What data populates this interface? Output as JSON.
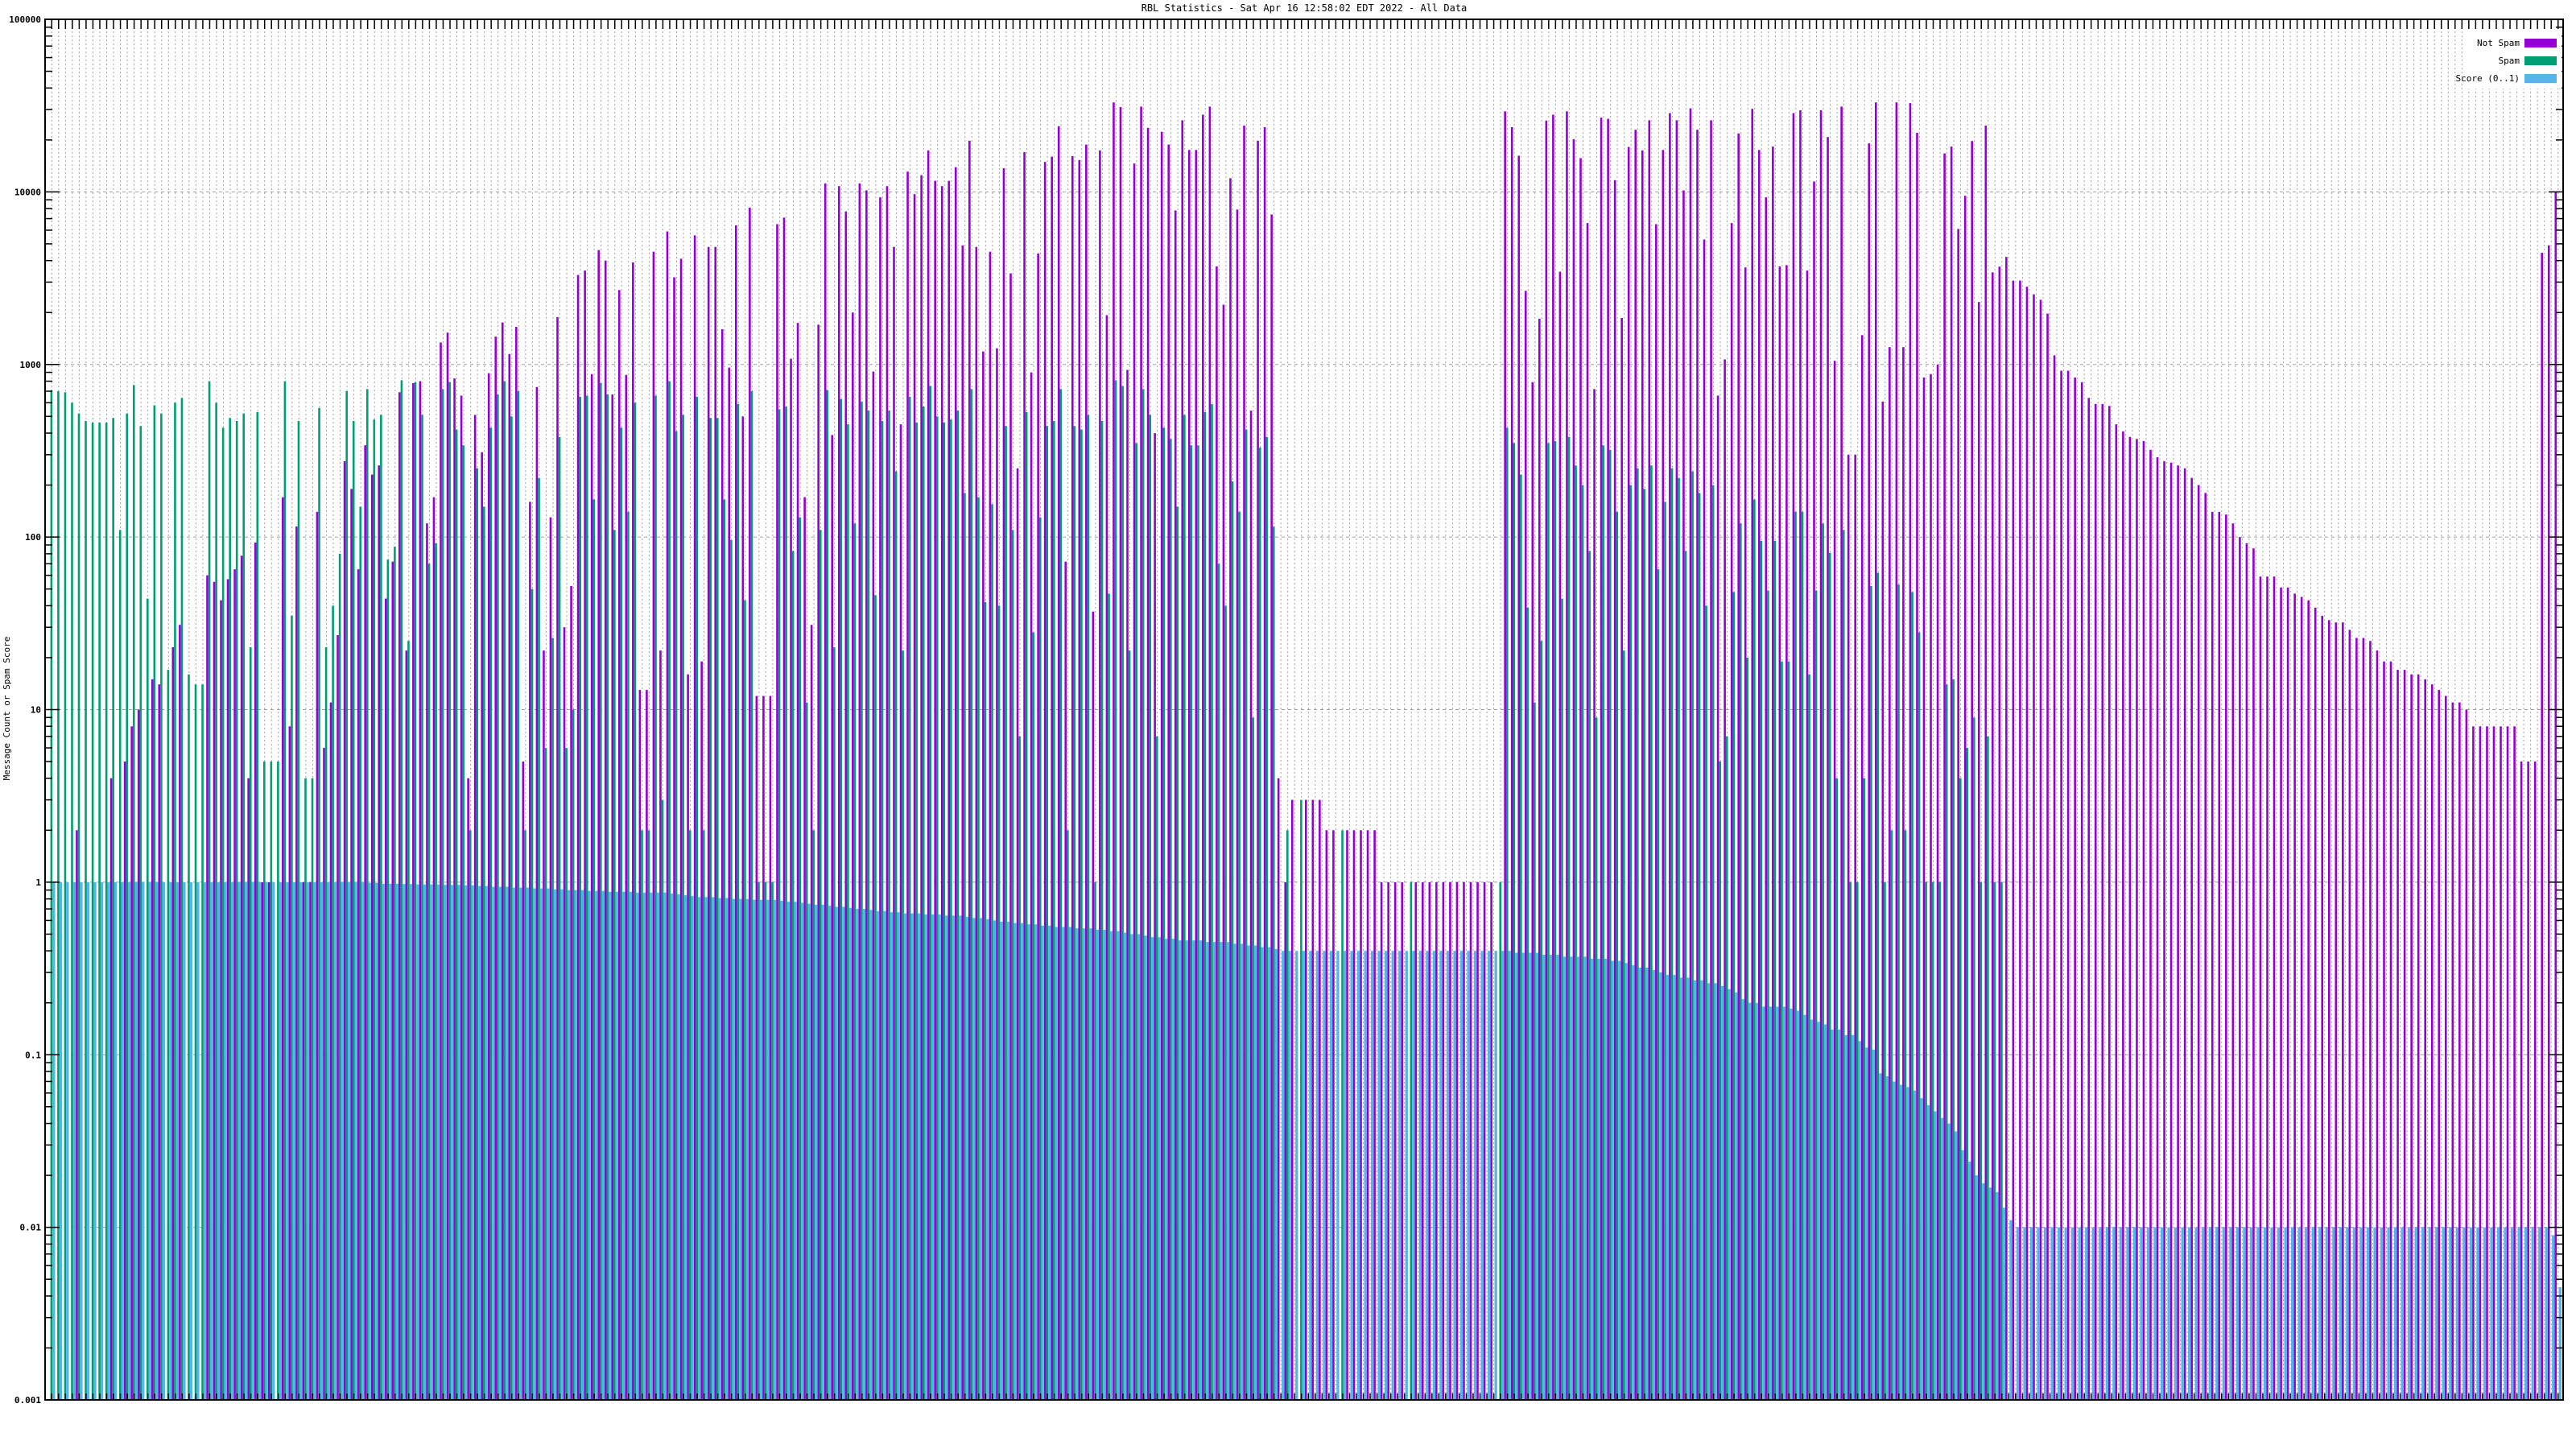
{
  "chart_data": {
    "type": "bar",
    "title": "RBL Statistics - Sat Apr 16 12:58:02 EDT 2022 - All Data",
    "xlabel": "",
    "ylabel": "Message Count or Spam Score",
    "yscale": "log",
    "ylim": [
      0.001,
      100000
    ],
    "yticks": [
      "100000",
      "10000",
      "1000",
      "100",
      "10",
      "1",
      "0.1",
      "0.01",
      "0.001"
    ],
    "ytick_values": [
      100000,
      10000,
      1000,
      100,
      10,
      1,
      0.1,
      0.01,
      0.001
    ],
    "grid": true,
    "legend_position": "top-right",
    "colors": {
      "not_spam": "#9400d3",
      "spam": "#009e73",
      "score": "#56b4e9"
    },
    "series": [
      {
        "key": "not_spam",
        "name": "Not Spam",
        "values": [
          0,
          0,
          0,
          0,
          2,
          0,
          0,
          0,
          0,
          4,
          0,
          5,
          8,
          10,
          0,
          15,
          14,
          0,
          23,
          31,
          0,
          0,
          0,
          60,
          55,
          43,
          57,
          65,
          78,
          4,
          93,
          1,
          1,
          0,
          170,
          8,
          115,
          1,
          1,
          140,
          6,
          11,
          27,
          275,
          190,
          65,
          340,
          230,
          260,
          44,
          72,
          690,
          22,
          780,
          800,
          120,
          170,
          1340,
          1530,
          830,
          660,
          4,
          510,
          310,
          890,
          1450,
          1750,
          1150,
          1650,
          5,
          160,
          740,
          22,
          130,
          1880,
          30,
          52,
          3300,
          3500,
          880,
          4600,
          4000,
          670,
          2700,
          870,
          3900,
          13,
          13,
          4500,
          22,
          5900,
          3200,
          4100,
          16,
          5600,
          19,
          4800,
          4800,
          1600,
          960,
          6400,
          500,
          8100,
          12,
          12,
          12,
          6500,
          7100,
          1080,
          1740,
          170,
          31,
          1700,
          11200,
          390,
          10800,
          7700,
          2000,
          11200,
          10200,
          910,
          9300,
          10800,
          4800,
          450,
          13100,
          9700,
          12500,
          17400,
          11600,
          10800,
          11600,
          13900,
          4900,
          19800,
          4800,
          1190,
          4500,
          1240,
          13700,
          3370,
          250,
          17000,
          900,
          4400,
          14900,
          16000,
          24000,
          72,
          16100,
          15300,
          18800,
          37,
          17400,
          1930,
          33000,
          31000,
          930,
          14600,
          31200,
          23500,
          400,
          22300,
          18800,
          7800,
          26000,
          17500,
          17500,
          28000,
          31200,
          3700,
          2220,
          12000,
          7900,
          24200,
          540,
          19800,
          23700,
          7400,
          4,
          1,
          3,
          0,
          3,
          3,
          3,
          2,
          2,
          0,
          2,
          2,
          2,
          2,
          2,
          1,
          1,
          1,
          1,
          0,
          1,
          1,
          1,
          1,
          1,
          1,
          1,
          1,
          1,
          1,
          1,
          1,
          0,
          29300,
          23700,
          16200,
          2670,
          790,
          1840,
          25900,
          28000,
          3450,
          29300,
          20200,
          15700,
          6600,
          720,
          26900,
          26500,
          11700,
          1860,
          18200,
          22900,
          17400,
          26000,
          6500,
          17500,
          28600,
          26000,
          10200,
          30500,
          22900,
          5300,
          26000,
          660,
          1070,
          6600,
          21800,
          3650,
          30300,
          17500,
          9300,
          18300,
          3700,
          3760,
          28600,
          29700,
          3500,
          11500,
          29700,
          20800,
          1050,
          31200,
          300,
          300,
          1480,
          19100,
          33000,
          610,
          1260,
          33000,
          1260,
          32700,
          22000,
          840,
          880,
          1000,
          16700,
          18300,
          6100,
          9500,
          19700,
          2300,
          24200,
          3420,
          3690,
          4200,
          3060,
          3060,
          2820,
          2550,
          2370,
          1970,
          1130,
          920,
          920,
          840,
          790,
          640,
          590,
          590,
          575,
          450,
          410,
          380,
          370,
          360,
          320,
          290,
          275,
          270,
          260,
          250,
          220,
          200,
          180,
          140,
          140,
          135,
          120,
          100,
          92,
          86,
          59,
          59,
          59,
          51,
          51,
          47,
          45,
          43,
          39,
          35,
          33,
          32,
          32,
          29,
          26,
          26,
          25,
          22,
          19,
          19,
          17,
          17,
          16,
          16,
          15,
          14,
          13,
          12,
          11,
          11,
          10,
          8,
          8,
          8,
          8,
          8,
          8,
          8,
          5,
          5,
          5,
          4440,
          4900,
          10000
        ]
      },
      {
        "key": "spam",
        "name": "Spam",
        "values": [
          710,
          700,
          690,
          600,
          520,
          470,
          460,
          460,
          460,
          490,
          110,
          520,
          760,
          440,
          44,
          580,
          520,
          17,
          600,
          640,
          16,
          14,
          14,
          800,
          600,
          430,
          490,
          470,
          520,
          23,
          530,
          5,
          5,
          5,
          800,
          35,
          470,
          4,
          4,
          560,
          23,
          40,
          80,
          700,
          470,
          150,
          720,
          480,
          510,
          74,
          88,
          810,
          25,
          790,
          510,
          70,
          92,
          720,
          790,
          420,
          340,
          2,
          250,
          150,
          430,
          670,
          800,
          500,
          700,
          2,
          50,
          220,
          6,
          26,
          380,
          6,
          10,
          650,
          660,
          165,
          780,
          670,
          110,
          430,
          140,
          600,
          2,
          2,
          660,
          3,
          800,
          410,
          510,
          2,
          650,
          2,
          490,
          490,
          165,
          96,
          590,
          43,
          700,
          1,
          1,
          1,
          550,
          570,
          83,
          130,
          11,
          2,
          110,
          710,
          23,
          630,
          450,
          120,
          610,
          540,
          46,
          470,
          540,
          240,
          22,
          650,
          460,
          570,
          750,
          500,
          460,
          480,
          540,
          180,
          720,
          170,
          42,
          155,
          40,
          440,
          110,
          7,
          530,
          28,
          130,
          440,
          470,
          720,
          2,
          440,
          420,
          510,
          1,
          470,
          47,
          810,
          750,
          22,
          350,
          720,
          510,
          7,
          430,
          370,
          150,
          510,
          340,
          340,
          530,
          590,
          70,
          40,
          210,
          140,
          420,
          9,
          330,
          380,
          115,
          0,
          2,
          0,
          3,
          0,
          0,
          0,
          0,
          0,
          2,
          0,
          0,
          0,
          0,
          0,
          0,
          0,
          0,
          0,
          1,
          0,
          0,
          0,
          0,
          0,
          0,
          0,
          0,
          0,
          0,
          0,
          0,
          1,
          430,
          350,
          230,
          39,
          11,
          25,
          350,
          360,
          44,
          380,
          260,
          200,
          83,
          9,
          340,
          320,
          140,
          22,
          200,
          250,
          190,
          260,
          65,
          160,
          250,
          220,
          83,
          240,
          180,
          40,
          200,
          5,
          7,
          48,
          120,
          20,
          165,
          95,
          49,
          95,
          19,
          19,
          140,
          140,
          16,
          49,
          120,
          81,
          4,
          110,
          1,
          1,
          4,
          52,
          62,
          1,
          2,
          53,
          2,
          48,
          28,
          1,
          1,
          1,
          14,
          15,
          4,
          6,
          9,
          1,
          7,
          1,
          1,
          0,
          0,
          0,
          0,
          0,
          0,
          0,
          0,
          0,
          0,
          0,
          0,
          0,
          0,
          0,
          0,
          0,
          0,
          0,
          0,
          0,
          0,
          0,
          0,
          0,
          0,
          0,
          0,
          0,
          0,
          0,
          0,
          0,
          0,
          0,
          0,
          0,
          0,
          0,
          0,
          0,
          0,
          0,
          0,
          0,
          0,
          0,
          0,
          0,
          0,
          0,
          0,
          0,
          0,
          0,
          0,
          0,
          0,
          0,
          0,
          0,
          0,
          0,
          0,
          0,
          0,
          0,
          0,
          0,
          0,
          0,
          0,
          0,
          0,
          0,
          0,
          0,
          0,
          0,
          0,
          0
        ]
      },
      {
        "key": "score",
        "name": "Score (0..1)",
        "values": [
          1,
          1,
          1,
          1,
          1,
          1,
          1,
          1,
          1,
          1,
          1,
          1,
          1,
          1,
          1,
          1,
          1,
          1,
          1,
          1,
          1,
          1,
          1,
          1,
          1,
          1,
          1,
          1,
          1,
          1,
          1,
          1,
          1,
          1,
          1,
          1,
          1,
          1,
          1,
          1,
          1,
          1,
          1,
          1,
          1,
          1,
          0.99,
          0.99,
          0.98,
          0.98,
          0.98,
          0.975,
          0.975,
          0.97,
          0.97,
          0.97,
          0.97,
          0.965,
          0.965,
          0.965,
          0.96,
          0.96,
          0.95,
          0.95,
          0.94,
          0.94,
          0.94,
          0.93,
          0.93,
          0.93,
          0.92,
          0.92,
          0.92,
          0.91,
          0.91,
          0.9,
          0.9,
          0.9,
          0.89,
          0.89,
          0.89,
          0.88,
          0.88,
          0.88,
          0.88,
          0.87,
          0.87,
          0.87,
          0.87,
          0.87,
          0.86,
          0.85,
          0.84,
          0.83,
          0.82,
          0.82,
          0.82,
          0.81,
          0.81,
          0.8,
          0.8,
          0.8,
          0.79,
          0.79,
          0.79,
          0.79,
          0.78,
          0.77,
          0.77,
          0.76,
          0.75,
          0.74,
          0.74,
          0.73,
          0.72,
          0.72,
          0.71,
          0.7,
          0.7,
          0.69,
          0.68,
          0.68,
          0.67,
          0.67,
          0.66,
          0.66,
          0.66,
          0.65,
          0.65,
          0.65,
          0.64,
          0.64,
          0.64,
          0.63,
          0.62,
          0.62,
          0.61,
          0.6,
          0.59,
          0.59,
          0.58,
          0.58,
          0.57,
          0.57,
          0.56,
          0.56,
          0.55,
          0.55,
          0.55,
          0.54,
          0.54,
          0.54,
          0.53,
          0.53,
          0.52,
          0.52,
          0.51,
          0.5,
          0.5,
          0.49,
          0.48,
          0.48,
          0.47,
          0.47,
          0.46,
          0.46,
          0.46,
          0.46,
          0.45,
          0.45,
          0.45,
          0.45,
          0.44,
          0.44,
          0.43,
          0.43,
          0.42,
          0.42,
          0.41,
          0.4,
          0.4,
          0.4,
          0.4,
          0.4,
          0.4,
          0.4,
          0.4,
          0.4,
          0.4,
          0.4,
          0.4,
          0.4,
          0.4,
          0.4,
          0.4,
          0.4,
          0.4,
          0.4,
          0.4,
          0.4,
          0.4,
          0.4,
          0.4,
          0.4,
          0.4,
          0.4,
          0.4,
          0.4,
          0.4,
          0.4,
          0.4,
          0.4,
          0.4,
          0.39,
          0.39,
          0.39,
          0.39,
          0.38,
          0.38,
          0.38,
          0.37,
          0.37,
          0.37,
          0.37,
          0.36,
          0.36,
          0.36,
          0.35,
          0.35,
          0.34,
          0.33,
          0.32,
          0.32,
          0.31,
          0.3,
          0.29,
          0.29,
          0.28,
          0.28,
          0.27,
          0.27,
          0.26,
          0.26,
          0.25,
          0.24,
          0.23,
          0.21,
          0.2,
          0.2,
          0.19,
          0.19,
          0.19,
          0.19,
          0.185,
          0.18,
          0.17,
          0.16,
          0.155,
          0.15,
          0.14,
          0.14,
          0.13,
          0.13,
          0.12,
          0.11,
          0.107,
          0.078,
          0.075,
          0.07,
          0.067,
          0.065,
          0.062,
          0.056,
          0.051,
          0.047,
          0.043,
          0.04,
          0.036,
          0.028,
          0.024,
          0.02,
          0.018,
          0.017,
          0.016,
          0.013,
          0.011,
          0.01,
          0.01,
          0.01,
          0.01,
          0.01,
          0.01,
          0.01,
          0.01,
          0.01,
          0.01,
          0.01,
          0.01,
          0.01,
          0.01,
          0.01,
          0.01,
          0.01,
          0.01,
          0.01,
          0.01,
          0.01,
          0.01,
          0.01,
          0.01,
          0.01,
          0.01,
          0.01,
          0.01,
          0.01,
          0.01,
          0.01,
          0.01,
          0.01,
          0.01,
          0.01,
          0.01,
          0.01,
          0.01,
          0.01,
          0.01,
          0.01,
          0.01,
          0.01,
          0.01,
          0.01,
          0.01,
          0.01,
          0.01,
          0.01,
          0.01,
          0.01,
          0.01,
          0.01,
          0.01,
          0.01,
          0.01,
          0.01,
          0.01,
          0.01,
          0.01,
          0.01,
          0.01,
          0.01,
          0.01,
          0.01,
          0.01,
          0.01,
          0.01,
          0.01,
          0.01,
          0.01,
          0.01,
          0.01,
          0.01,
          0.01,
          0.01,
          0.01,
          0.01,
          0.009,
          0.0045
        ]
      }
    ]
  }
}
